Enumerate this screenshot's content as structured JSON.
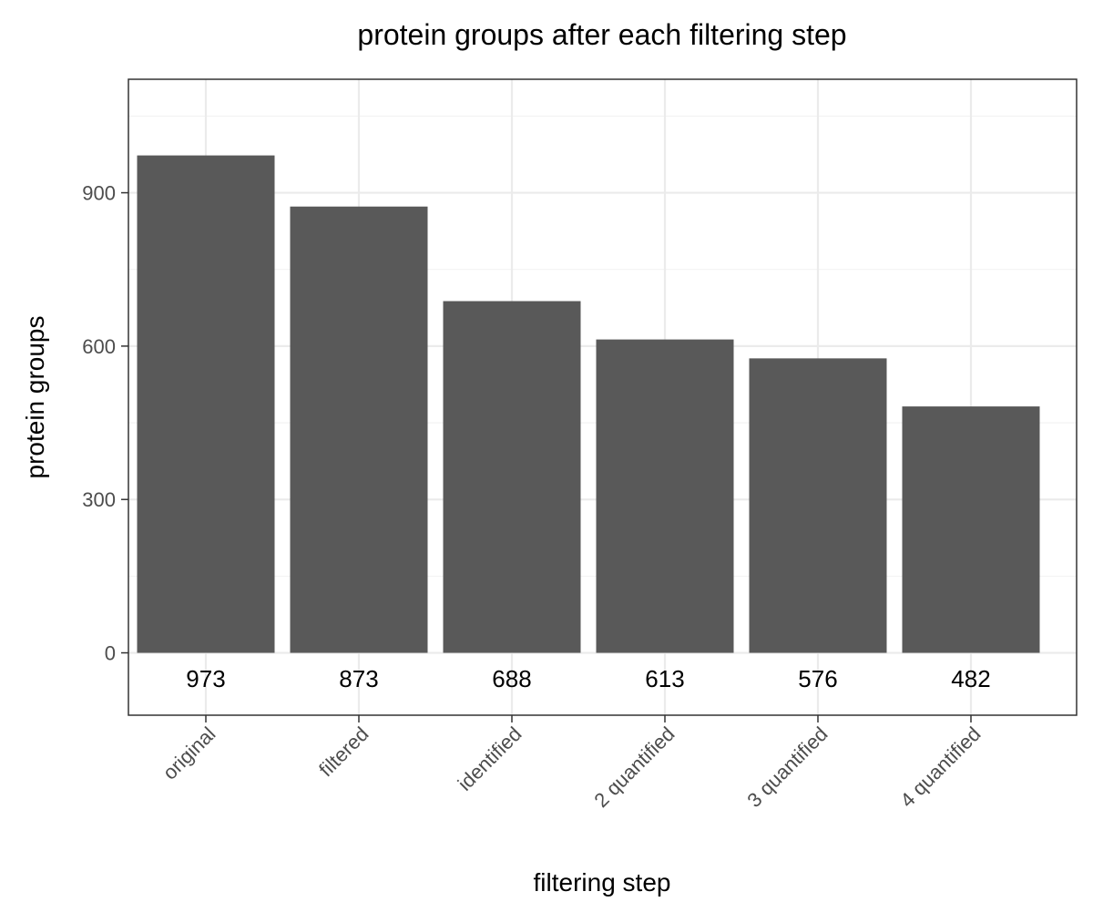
{
  "chart_data": {
    "type": "bar",
    "title": "protein groups after each filtering step",
    "xlabel": "filtering step",
    "ylabel": "protein groups",
    "categories": [
      "original",
      "filtered",
      "identified",
      "2 quantified",
      "3 quantified",
      "4 quantified"
    ],
    "values": [
      973,
      873,
      688,
      613,
      576,
      482
    ],
    "data_labels": [
      "973",
      "873",
      "688",
      "613",
      "576",
      "482"
    ],
    "yticks": [
      0,
      300,
      600,
      900
    ],
    "ytick_labels": [
      "0",
      "300",
      "600",
      "900"
    ],
    "ylim": [
      -122,
      1122
    ],
    "x_tick_label_rotation": -45,
    "grid": true,
    "legend": "none",
    "colors": {
      "bar": "#595959",
      "panel_border": "#333333",
      "grid": "#ebebeb",
      "tick_label": "#4d4d4d"
    }
  }
}
